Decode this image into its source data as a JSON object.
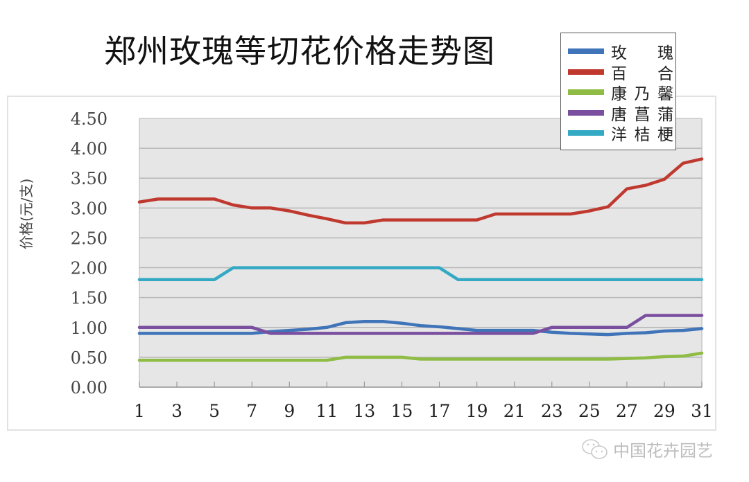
{
  "header": {
    "title": "郑州玫瑰等切花价格走势图"
  },
  "watermark": {
    "text": "中国花卉园艺",
    "icon": "wechat-icon"
  },
  "legend": {
    "items": [
      {
        "label": "玫瑰",
        "chars": [
          "玫",
          "瑰"
        ],
        "color": "#3f74b9"
      },
      {
        "label": "百合",
        "chars": [
          "百",
          "合"
        ],
        "color": "#c0392f"
      },
      {
        "label": "康乃馨",
        "chars": [
          "康",
          "乃",
          "馨"
        ],
        "color": "#8fbc45"
      },
      {
        "label": "唐菖蒲",
        "chars": [
          "唐",
          "菖",
          "蒲"
        ],
        "color": "#7a4f9f"
      },
      {
        "label": "洋桔梗",
        "chars": [
          "洋",
          "桔",
          "梗"
        ],
        "color": "#33a9c4"
      }
    ]
  },
  "axes": {
    "ylabel": "价格(元/支)",
    "yticks": [
      "0.00",
      "0.50",
      "1.00",
      "1.50",
      "2.00",
      "2.50",
      "3.00",
      "3.50",
      "4.00",
      "4.50"
    ],
    "xticks": [
      "1",
      "3",
      "5",
      "7",
      "9",
      "11",
      "13",
      "15",
      "17",
      "19",
      "21",
      "23",
      "25",
      "27",
      "29",
      "31"
    ]
  },
  "chart_data": {
    "type": "line",
    "title": "郑州玫瑰等切花价格走势图",
    "xlabel": "",
    "ylabel": "价格(元/支)",
    "ylim": [
      0,
      4.5
    ],
    "xlim": [
      1,
      31
    ],
    "grid": true,
    "legend_position": "top-right",
    "x": [
      1,
      2,
      3,
      4,
      5,
      6,
      7,
      8,
      9,
      10,
      11,
      12,
      13,
      14,
      15,
      16,
      17,
      18,
      19,
      20,
      21,
      22,
      23,
      24,
      25,
      26,
      27,
      28,
      29,
      30,
      31
    ],
    "series": [
      {
        "name": "玫瑰",
        "color": "#3f74b9",
        "values": [
          0.9,
          0.9,
          0.9,
          0.9,
          0.9,
          0.9,
          0.9,
          0.93,
          0.95,
          0.97,
          1.0,
          1.08,
          1.1,
          1.1,
          1.07,
          1.03,
          1.01,
          0.98,
          0.95,
          0.95,
          0.95,
          0.95,
          0.92,
          0.9,
          0.89,
          0.88,
          0.9,
          0.91,
          0.94,
          0.95,
          0.98
        ]
      },
      {
        "name": "百合",
        "color": "#c0392f",
        "values": [
          3.1,
          3.15,
          3.15,
          3.15,
          3.15,
          3.05,
          3.0,
          3.0,
          2.95,
          2.88,
          2.82,
          2.75,
          2.75,
          2.8,
          2.8,
          2.8,
          2.8,
          2.8,
          2.8,
          2.9,
          2.9,
          2.9,
          2.9,
          2.9,
          2.95,
          3.02,
          3.32,
          3.38,
          3.48,
          3.75,
          3.82
        ]
      },
      {
        "name": "康乃馨",
        "color": "#8fbc45",
        "values": [
          0.45,
          0.45,
          0.45,
          0.45,
          0.45,
          0.45,
          0.45,
          0.45,
          0.45,
          0.45,
          0.45,
          0.5,
          0.5,
          0.5,
          0.5,
          0.47,
          0.47,
          0.47,
          0.47,
          0.47,
          0.47,
          0.47,
          0.47,
          0.47,
          0.47,
          0.47,
          0.48,
          0.49,
          0.51,
          0.52,
          0.57
        ]
      },
      {
        "name": "唐菖蒲",
        "color": "#7a4f9f",
        "values": [
          1.0,
          1.0,
          1.0,
          1.0,
          1.0,
          1.0,
          1.0,
          0.9,
          0.9,
          0.9,
          0.9,
          0.9,
          0.9,
          0.9,
          0.9,
          0.9,
          0.9,
          0.9,
          0.9,
          0.9,
          0.9,
          0.9,
          1.0,
          1.0,
          1.0,
          1.0,
          1.0,
          1.2,
          1.2,
          1.2,
          1.2
        ]
      },
      {
        "name": "洋桔梗",
        "color": "#33a9c4",
        "values": [
          1.8,
          1.8,
          1.8,
          1.8,
          1.8,
          2.0,
          2.0,
          2.0,
          2.0,
          2.0,
          2.0,
          2.0,
          2.0,
          2.0,
          2.0,
          2.0,
          2.0,
          1.8,
          1.8,
          1.8,
          1.8,
          1.8,
          1.8,
          1.8,
          1.8,
          1.8,
          1.8,
          1.8,
          1.8,
          1.8,
          1.8
        ]
      }
    ]
  }
}
